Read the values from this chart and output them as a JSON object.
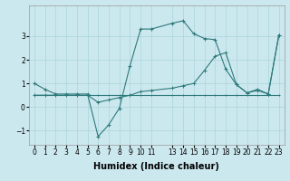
{
  "xlabel": "Humidex (Indice chaleur)",
  "ylabel": "",
  "bg_color": "#cce8ef",
  "line_color": "#2d7a7a",
  "grid_color": "#aad4dc",
  "xlim": [
    -0.5,
    23.5
  ],
  "ylim": [
    -1.6,
    4.3
  ],
  "yticks": [
    -1,
    0,
    1,
    2,
    3
  ],
  "xtick_positions": [
    0,
    1,
    2,
    3,
    4,
    5,
    6,
    7,
    8,
    9,
    10,
    11,
    13,
    14,
    15,
    16,
    17,
    18,
    19,
    20,
    21,
    22,
    23
  ],
  "xtick_labels": [
    "0",
    "1",
    "2",
    "3",
    "4",
    "5",
    "6",
    "7",
    "8",
    "9",
    "10",
    "11",
    "13",
    "14",
    "15",
    "16",
    "17",
    "18",
    "19",
    "20",
    "21",
    "22",
    "23"
  ],
  "series1_x": [
    0,
    1,
    2,
    3,
    4,
    5,
    6,
    7,
    8,
    9,
    10,
    11,
    13,
    14,
    15,
    16,
    17,
    18,
    19,
    20,
    21,
    22,
    23
  ],
  "series1_y": [
    1.0,
    0.75,
    0.55,
    0.55,
    0.55,
    0.55,
    -1.25,
    -0.75,
    -0.05,
    1.75,
    3.3,
    3.3,
    3.55,
    3.65,
    3.1,
    2.9,
    2.85,
    1.6,
    0.95,
    0.6,
    0.7,
    0.55,
    3.05
  ],
  "series2_x": [
    0,
    1,
    2,
    3,
    4,
    5,
    6,
    7,
    8,
    9,
    10,
    11,
    13,
    14,
    15,
    16,
    17,
    18,
    19,
    20,
    21,
    22,
    23
  ],
  "series2_y": [
    0.5,
    0.5,
    0.5,
    0.5,
    0.5,
    0.5,
    0.5,
    0.5,
    0.5,
    0.5,
    0.5,
    0.5,
    0.5,
    0.5,
    0.5,
    0.5,
    0.5,
    0.5,
    0.5,
    0.5,
    0.5,
    0.5,
    0.5
  ],
  "series3_x": [
    0,
    1,
    2,
    3,
    4,
    5,
    6,
    7,
    8,
    9,
    10,
    11,
    13,
    14,
    15,
    16,
    17,
    18,
    19,
    20,
    21,
    22,
    23
  ],
  "series3_y": [
    0.5,
    0.5,
    0.5,
    0.5,
    0.5,
    0.5,
    0.2,
    0.3,
    0.4,
    0.5,
    0.65,
    0.7,
    0.8,
    0.9,
    1.0,
    1.55,
    2.15,
    2.3,
    0.95,
    0.6,
    0.75,
    0.55,
    3.05
  ],
  "fontsize": 7,
  "tick_fontsize": 5.5,
  "xlabel_fontsize": 7
}
